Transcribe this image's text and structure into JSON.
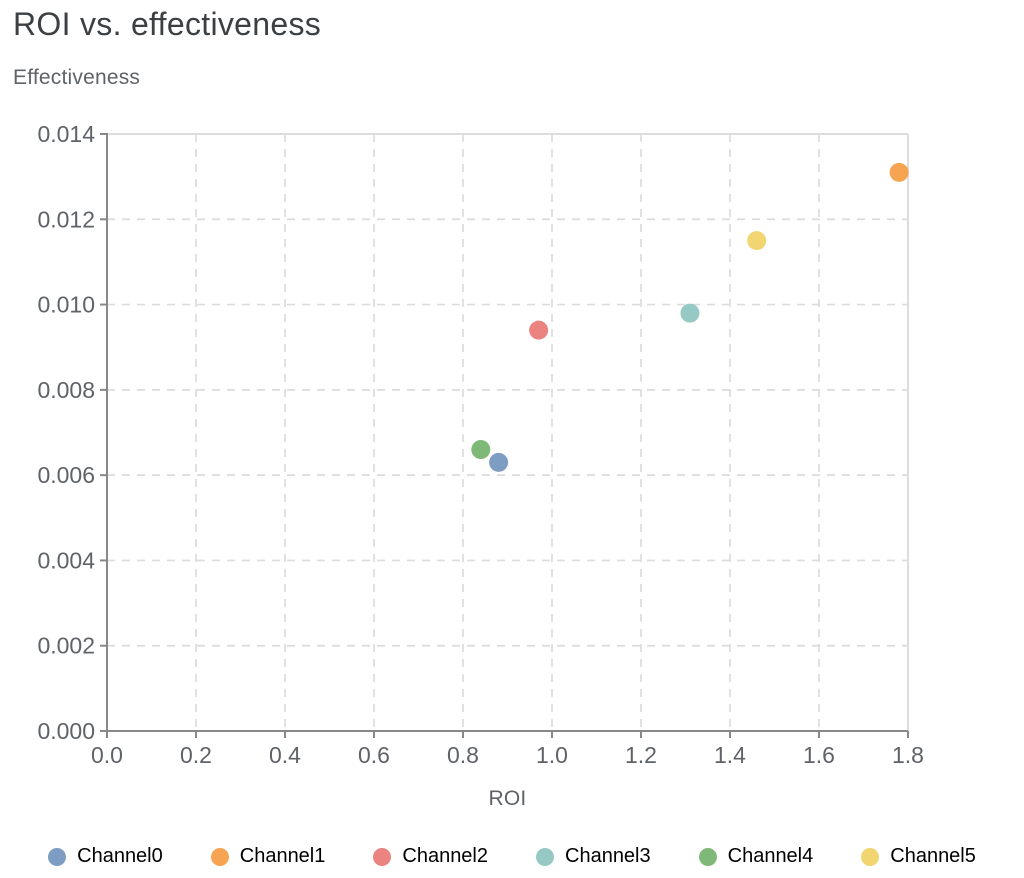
{
  "header": {
    "title": "ROI vs. effectiveness"
  },
  "chart_data": {
    "type": "scatter",
    "title": "ROI vs. effectiveness",
    "xlabel": "ROI",
    "ylabel": "Effectiveness",
    "xlim": [
      0.0,
      1.8
    ],
    "ylim": [
      0.0,
      0.014
    ],
    "x_ticks": [
      0.0,
      0.2,
      0.4,
      0.6,
      0.8,
      1.0,
      1.2,
      1.4,
      1.6,
      1.8
    ],
    "x_tick_labels": [
      "0.0",
      "0.2",
      "0.4",
      "0.6",
      "0.8",
      "1.0",
      "1.2",
      "1.4",
      "1.6",
      "1.8"
    ],
    "y_ticks": [
      0.0,
      0.002,
      0.004,
      0.006,
      0.008,
      0.01,
      0.012,
      0.014
    ],
    "y_tick_labels": [
      "0.000",
      "0.002",
      "0.004",
      "0.006",
      "0.008",
      "0.010",
      "0.012",
      "0.014"
    ],
    "grid": "dashed",
    "legend_position": "bottom",
    "series": [
      {
        "name": "Channel0",
        "color": "#7e9dc3",
        "points": [
          {
            "x": 0.88,
            "y": 0.0063
          }
        ]
      },
      {
        "name": "Channel1",
        "color": "#f7a452",
        "points": [
          {
            "x": 1.78,
            "y": 0.0131
          }
        ]
      },
      {
        "name": "Channel2",
        "color": "#eb8381",
        "points": [
          {
            "x": 0.97,
            "y": 0.0094
          }
        ]
      },
      {
        "name": "Channel3",
        "color": "#96c9c4",
        "points": [
          {
            "x": 1.31,
            "y": 0.0098
          }
        ]
      },
      {
        "name": "Channel4",
        "color": "#7fb978",
        "points": [
          {
            "x": 0.84,
            "y": 0.0066
          }
        ]
      },
      {
        "name": "Channel5",
        "color": "#f1d571",
        "points": [
          {
            "x": 1.46,
            "y": 0.0115
          }
        ]
      }
    ]
  },
  "colors": {
    "title_text": "#3c4043",
    "axis_title_text": "#5f6368",
    "tick_label_text": "#5f6368",
    "legend_label_text": "#000000",
    "gridline": "#dcdcdc",
    "axis_domain": "#888888",
    "plot_border": "#dddddd",
    "background": "#ffffff"
  }
}
